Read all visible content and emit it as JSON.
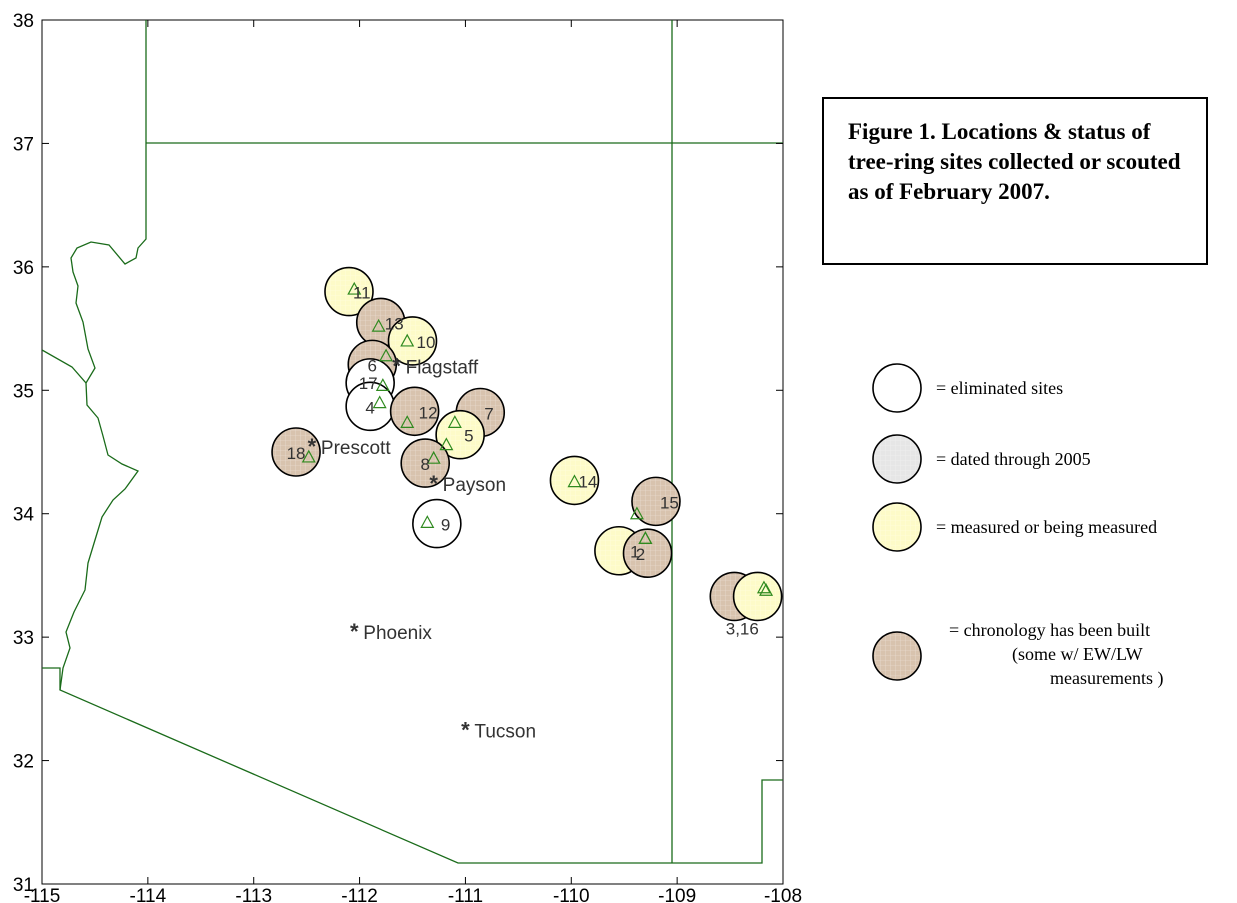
{
  "caption": {
    "label": "Figure 1",
    "text": ". Locations & status of tree-ring sites collected or scouted as of February 2007."
  },
  "map": {
    "xlim": [
      -115,
      -108
    ],
    "ylim": [
      31,
      38
    ],
    "xticks": [
      -115,
      -114,
      -113,
      -112,
      -111,
      -110,
      -109,
      -108
    ],
    "yticks": [
      31,
      32,
      33,
      34,
      35,
      36,
      37,
      38
    ],
    "border_color": "#1a6b1a",
    "cities": [
      {
        "name": "Flagstaff",
        "lon": -111.65,
        "lat": 35.2
      },
      {
        "name": "Prescott",
        "lon": -112.45,
        "lat": 34.55
      },
      {
        "name": "Payson",
        "lon": -111.3,
        "lat": 34.25
      },
      {
        "name": "Phoenix",
        "lon": -112.05,
        "lat": 33.05
      },
      {
        "name": "Tucson",
        "lon": -111.0,
        "lat": 32.25
      }
    ],
    "sites": [
      {
        "label": "11",
        "status": "measured",
        "lon": -112.1,
        "lat": 35.8,
        "tri_lon": -112.05,
        "tri_lat": 35.82
      },
      {
        "label": "13",
        "status": "chronology",
        "lon": -111.8,
        "lat": 35.55,
        "tri_lon": -111.82,
        "tri_lat": 35.52
      },
      {
        "label": "10",
        "status": "measured",
        "lon": -111.5,
        "lat": 35.4,
        "tri_lon": -111.55,
        "tri_lat": 35.4
      },
      {
        "label": "6",
        "status": "chronology",
        "lon": -111.88,
        "lat": 35.21,
        "tri_lon": -111.75,
        "tri_lat": 35.28
      },
      {
        "label": "17",
        "status": "eliminated",
        "lon": -111.9,
        "lat": 35.06,
        "tri_lon": -111.78,
        "tri_lat": 35.04
      },
      {
        "label": "4",
        "status": "eliminated",
        "lon": -111.9,
        "lat": 34.87,
        "tri_lon": -111.81,
        "tri_lat": 34.9
      },
      {
        "label": "12",
        "status": "chronology",
        "lon": -111.48,
        "lat": 34.83,
        "tri_lon": -111.55,
        "tri_lat": 34.74
      },
      {
        "label": "7",
        "status": "chronology",
        "lon": -110.86,
        "lat": 34.82,
        "tri_lon": -111.1,
        "tri_lat": 34.74
      },
      {
        "label": "5",
        "status": "measured",
        "lon": -111.05,
        "lat": 34.64,
        "tri_lon": -111.18,
        "tri_lat": 34.56
      },
      {
        "label": "18",
        "status": "chronology",
        "lon": -112.6,
        "lat": 34.5,
        "tri_lon": -112.48,
        "tri_lat": 34.46
      },
      {
        "label": "8",
        "status": "chronology",
        "lon": -111.38,
        "lat": 34.41,
        "tri_lon": -111.3,
        "tri_lat": 34.45
      },
      {
        "label": "9",
        "status": "eliminated",
        "lon": -111.27,
        "lat": 33.92,
        "tri_lon": -111.36,
        "tri_lat": 33.93
      },
      {
        "label": "14",
        "status": "measured",
        "lon": -109.97,
        "lat": 34.27,
        "tri_lon": -109.97,
        "tri_lat": 34.26
      },
      {
        "label": "15",
        "status": "chronology",
        "lon": -109.2,
        "lat": 34.1,
        "tri_lon": -109.38,
        "tri_lat": 34.0
      },
      {
        "label": "1",
        "status": "measured",
        "lon": -109.55,
        "lat": 33.7,
        "tri_lon": -109.3,
        "tri_lat": 33.8
      },
      {
        "label": "2",
        "status": "chronology",
        "lon": -109.28,
        "lat": 33.68,
        "tri_lon": -109.3,
        "tri_lat": 33.8
      },
      {
        "label": "3,16",
        "status": "chronology",
        "lon": -108.46,
        "lat": 33.33,
        "tri_lon": -108.18,
        "tri_lat": 33.4
      },
      {
        "label": "",
        "status": "measured",
        "lon": -108.24,
        "lat": 33.33,
        "tri_lon": -108.16,
        "tri_lat": 33.38
      }
    ]
  },
  "legend": [
    {
      "status": "eliminated",
      "text": "= eliminated sites"
    },
    {
      "status": "dated",
      "text": "= dated through 2005"
    },
    {
      "status": "measured",
      "text": "= measured or being measured"
    },
    {
      "status": "chronology",
      "text_lines": [
        "=  chronology has been built",
        "(some  w/  EW/LW",
        "measurements )"
      ]
    }
  ],
  "colors": {
    "eliminated": "#ffffff",
    "dated": "#e6e6e6",
    "measured": "#fdfbc8",
    "chronology": "#d8c3ae",
    "triangle": "#2f8a1f"
  }
}
